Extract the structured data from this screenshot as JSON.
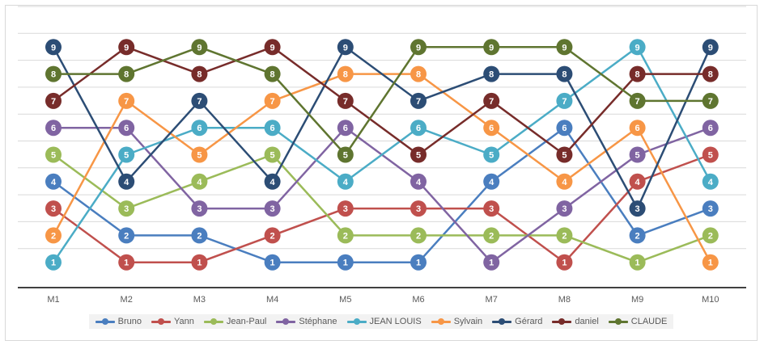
{
  "chart_data": {
    "type": "line",
    "categories": [
      "M1",
      "M2",
      "M3",
      "M4",
      "M5",
      "M6",
      "M7",
      "M8",
      "M9",
      "M10"
    ],
    "ylim": [
      0,
      9
    ],
    "grid": true,
    "legend_position": "bottom",
    "series": [
      {
        "name": "Bruno",
        "color": "#4a7ebf",
        "values": [
          4,
          2,
          2,
          1,
          1,
          1,
          4,
          6,
          2,
          3
        ]
      },
      {
        "name": "Yann",
        "color": "#c0504d",
        "values": [
          3,
          1,
          1,
          2,
          3,
          3,
          3,
          1,
          4,
          5
        ]
      },
      {
        "name": "Jean-Paul",
        "color": "#9bbb59",
        "values": [
          5,
          3,
          4,
          5,
          2,
          2,
          2,
          2,
          1,
          2
        ]
      },
      {
        "name": "Stéphane",
        "color": "#8064a2",
        "values": [
          6,
          6,
          3,
          3,
          6,
          4,
          1,
          3,
          5,
          6
        ]
      },
      {
        "name": "JEAN LOUIS",
        "color": "#4bacc6",
        "values": [
          1,
          5,
          6,
          6,
          4,
          6,
          5,
          7,
          9,
          4
        ]
      },
      {
        "name": "Sylvain",
        "color": "#f79646",
        "values": [
          2,
          7,
          5,
          7,
          8,
          8,
          6,
          4,
          6,
          1
        ]
      },
      {
        "name": "Gérard",
        "color": "#2c4d75",
        "values": [
          9,
          4,
          7,
          4,
          9,
          7,
          8,
          8,
          3,
          9
        ]
      },
      {
        "name": "daniel",
        "color": "#772c2a",
        "values": [
          7,
          9,
          8,
          9,
          7,
          5,
          7,
          5,
          8,
          8
        ]
      },
      {
        "name": "CLAUDE",
        "color": "#5f7530",
        "values": [
          8,
          8,
          9,
          8,
          5,
          9,
          9,
          9,
          7,
          7
        ]
      }
    ]
  }
}
